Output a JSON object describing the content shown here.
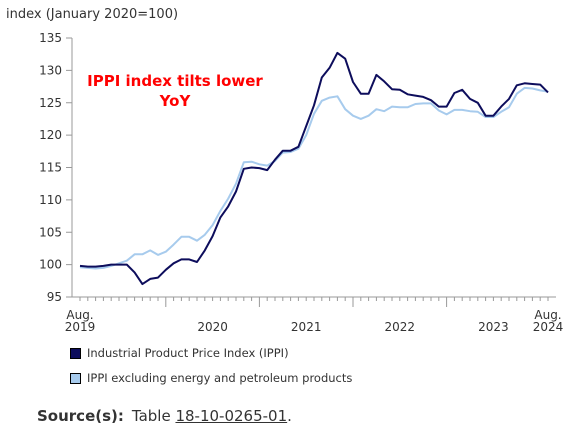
{
  "chart_data": {
    "type": "line",
    "ylabel": "index (January 2020=100)",
    "ylim": [
      95,
      135
    ],
    "yticks": [
      95,
      100,
      105,
      110,
      115,
      120,
      125,
      130,
      135
    ],
    "annotation": "IPPI index tilts lower YoY",
    "x_start": "Aug. 2019",
    "x_end": "Aug. 2024",
    "xtick_labels": [
      {
        "label": "Aug.",
        "sub": "2019",
        "month_index": 0
      },
      {
        "label": "2020",
        "sub": "",
        "month_index": 11
      },
      {
        "label": "2021",
        "sub": "",
        "month_index": 23
      },
      {
        "label": "2022",
        "sub": "",
        "month_index": 35
      },
      {
        "label": "2023",
        "sub": "",
        "month_index": 47
      },
      {
        "label": "Aug.",
        "sub": "2024",
        "month_index": 60
      }
    ],
    "series": [
      {
        "name": "Industrial Product Price Index (IPPI)",
        "color": "#0d0d5c",
        "values": [
          99.8,
          99.7,
          99.7,
          99.8,
          100.0,
          100.0,
          100.0,
          98.8,
          97.0,
          97.8,
          98.0,
          99.2,
          100.2,
          100.8,
          100.8,
          100.4,
          102.2,
          104.4,
          107.3,
          109.0,
          111.3,
          114.8,
          115.0,
          114.9,
          114.6,
          116.2,
          117.6,
          117.6,
          118.2,
          121.4,
          124.6,
          128.9,
          130.4,
          132.7,
          131.8,
          128.2,
          126.4,
          126.4,
          129.3,
          128.3,
          127.1,
          127.0,
          126.3,
          126.1,
          125.9,
          125.4,
          124.4,
          124.4,
          126.5,
          127.0,
          125.6,
          125.0,
          123.0,
          123.0,
          124.4,
          125.6,
          127.7,
          128.0,
          127.9,
          127.8,
          126.6
        ]
      },
      {
        "name": "IPPI excluding energy and petroleum products",
        "color": "#a7cbed",
        "values": [
          99.6,
          99.5,
          99.4,
          99.5,
          99.8,
          100.2,
          100.6,
          101.6,
          101.6,
          102.2,
          101.5,
          102.0,
          103.1,
          104.3,
          104.3,
          103.7,
          104.6,
          106.1,
          108.3,
          110.2,
          112.5,
          115.8,
          115.9,
          115.5,
          115.3,
          116.0,
          117.3,
          117.4,
          117.9,
          120.0,
          123.3,
          125.3,
          125.8,
          126.0,
          124.0,
          123.0,
          122.5,
          123.0,
          124.0,
          123.7,
          124.4,
          124.3,
          124.3,
          124.8,
          124.9,
          124.9,
          123.8,
          123.2,
          123.9,
          123.9,
          123.7,
          123.6,
          122.8,
          122.8,
          123.6,
          124.3,
          126.4,
          127.3,
          127.2,
          126.9,
          126.7
        ]
      }
    ],
    "legend_placement": "bottom-left",
    "grid": false
  },
  "source": {
    "label": "Source(s):",
    "prefix": "Table",
    "link": "18-10-0265-01",
    "suffix": "."
  }
}
